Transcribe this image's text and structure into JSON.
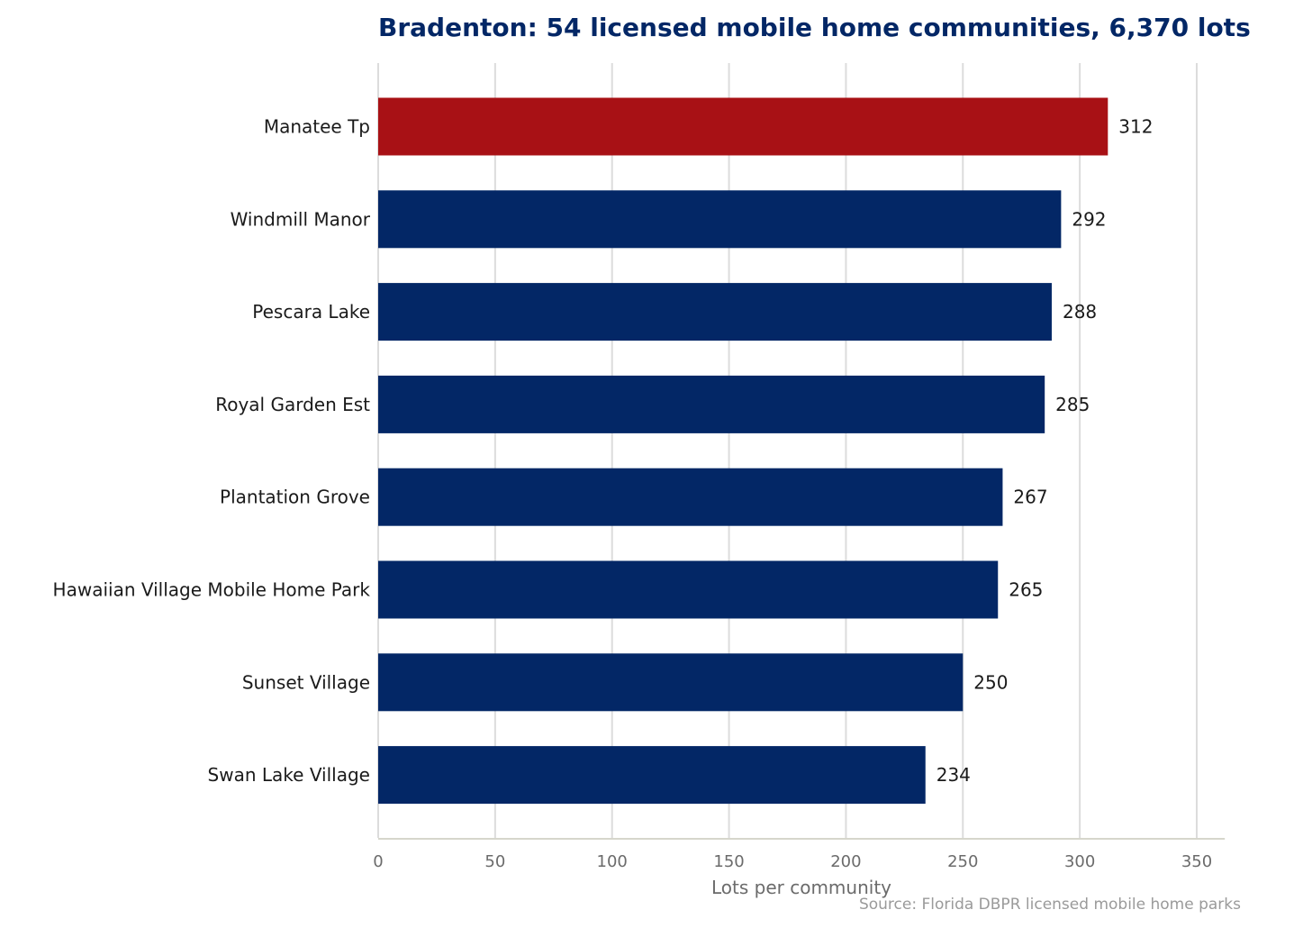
{
  "chart_data": {
    "type": "bar",
    "orientation": "horizontal",
    "title": "Bradenton: 54 licensed mobile home communities, 6,370 lots",
    "xlabel": "Lots per community",
    "ylabel": "",
    "xlim": [
      0,
      362
    ],
    "xticks": [
      0,
      50,
      100,
      150,
      200,
      250,
      300,
      350
    ],
    "grid": "vertical",
    "categories": [
      "Manatee Tp",
      "Windmill Manor",
      "Pescara Lake",
      "Royal Garden Est",
      "Plantation Grove",
      "Hawaiian Village Mobile Home Park",
      "Sunset Village",
      "Swan Lake Village"
    ],
    "values": [
      312,
      292,
      288,
      285,
      267,
      265,
      250,
      234
    ],
    "highlight_index": 0,
    "source": "Source: Florida DBPR licensed mobile home parks"
  },
  "colors": {
    "title": "#032766",
    "bar": "#032766",
    "highlight": "#a81115",
    "grid": "#dcdcdc",
    "axis": "#d6d6cc"
  }
}
